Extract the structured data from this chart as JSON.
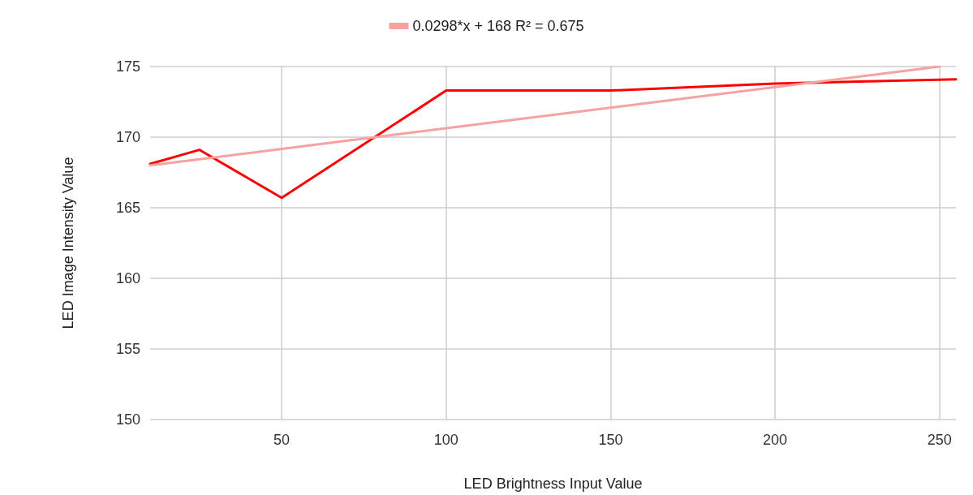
{
  "chart_data": {
    "type": "line",
    "xlabel": "LED Brightness Input Value",
    "ylabel": "LED Image Intensity Value",
    "xlim": [
      10,
      255
    ],
    "xticks": [
      50,
      100,
      150,
      200,
      250
    ],
    "ylim": [
      150,
      175
    ],
    "yticks": [
      150,
      155,
      160,
      165,
      170,
      175
    ],
    "grid": true,
    "legend": "top",
    "marker": "none",
    "line_style": "solid",
    "series": [
      {
        "color": "#ff0000",
        "x": [
          10,
          25,
          50,
          100,
          150,
          200,
          255
        ],
        "values": [
          168.1,
          169.1,
          165.7,
          173.3,
          173.3,
          173.8,
          174.1
        ]
      },
      {
        "name": "0.0298*x + 168 R² = 0.675",
        "color": "#f7a1a1",
        "x": [
          10,
          250
        ],
        "values": [
          168,
          175
        ]
      }
    ]
  }
}
